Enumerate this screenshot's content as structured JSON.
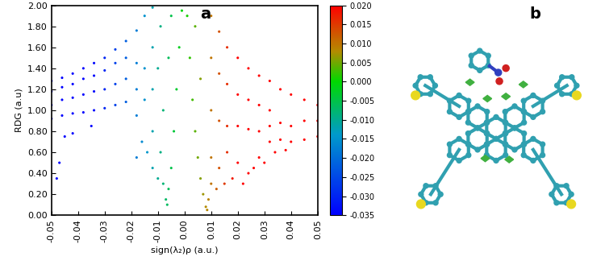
{
  "chart_data": {
    "type": "scatter",
    "panel_label": "a",
    "x_label": "sign(λ₂)ρ (a.u.)",
    "y_label": "RDG (a.u)",
    "x": [
      -0.05,
      -0.05,
      -0.05,
      -0.05,
      -0.046,
      -0.046,
      -0.046,
      -0.046,
      -0.042,
      -0.042,
      -0.042,
      -0.042,
      -0.038,
      -0.038,
      -0.038,
      -0.038,
      -0.034,
      -0.034,
      -0.034,
      -0.034,
      -0.03,
      -0.03,
      -0.03,
      -0.03,
      -0.026,
      -0.026,
      -0.026,
      -0.026,
      -0.022,
      -0.022,
      -0.022,
      -0.022,
      -0.018,
      -0.018,
      -0.018,
      -0.018,
      -0.015,
      -0.015,
      -0.015,
      -0.012,
      -0.012,
      -0.012,
      -0.012,
      -0.048,
      -0.047,
      -0.045,
      -0.042,
      -0.035,
      -0.018,
      -0.016,
      -0.014,
      -0.012,
      -0.01,
      -0.009,
      -0.008,
      -0.007,
      -0.0065,
      -0.006,
      -0.005,
      -0.004,
      -0.003,
      -0.002,
      -0.001,
      -0.008,
      -0.006,
      -0.005,
      -0.01,
      -0.009,
      0.001,
      0.002,
      0.003,
      0.004,
      0.005,
      0.006,
      0.007,
      0.008,
      0.0085,
      0.009,
      0.01,
      0.004,
      0.006,
      0.01,
      0.01,
      0.01,
      0.01,
      0.013,
      0.013,
      0.013,
      0.013,
      0.016,
      0.016,
      0.016,
      0.016,
      0.02,
      0.02,
      0.02,
      0.02,
      0.024,
      0.024,
      0.024,
      0.024,
      0.028,
      0.028,
      0.028,
      0.028,
      0.032,
      0.032,
      0.032,
      0.032,
      0.036,
      0.036,
      0.036,
      0.04,
      0.04,
      0.04,
      0.045,
      0.045,
      0.045,
      0.05,
      0.05,
      0.05,
      0.012,
      0.015,
      0.018,
      0.022,
      0.026,
      0.03,
      0.034,
      0.038
    ],
    "values": [
      0.92,
      1.05,
      1.18,
      1.28,
      0.95,
      1.1,
      1.22,
      1.31,
      0.97,
      1.12,
      1.25,
      1.35,
      0.98,
      1.15,
      1.3,
      1.4,
      1.0,
      1.18,
      1.33,
      1.45,
      1.02,
      1.2,
      1.38,
      1.5,
      1.05,
      1.25,
      1.45,
      1.58,
      1.08,
      1.3,
      1.5,
      1.66,
      0.95,
      1.2,
      1.45,
      1.76,
      1.1,
      1.4,
      1.9,
      0.8,
      1.2,
      1.6,
      1.98,
      0.35,
      0.5,
      0.75,
      0.78,
      0.85,
      0.55,
      0.7,
      0.6,
      0.45,
      0.35,
      0.6,
      0.3,
      0.15,
      0.1,
      0.25,
      0.45,
      0.8,
      1.2,
      1.6,
      1.95,
      1.0,
      1.5,
      1.9,
      1.4,
      1.8,
      1.9,
      1.5,
      1.1,
      0.8,
      0.55,
      0.35,
      0.2,
      0.08,
      0.05,
      0.15,
      0.3,
      1.8,
      1.3,
      0.55,
      1.0,
      1.5,
      1.9,
      0.45,
      0.9,
      1.35,
      1.75,
      0.6,
      0.85,
      1.25,
      1.6,
      0.5,
      0.85,
      1.15,
      1.5,
      0.4,
      0.82,
      1.1,
      1.4,
      0.55,
      0.8,
      1.05,
      1.33,
      0.7,
      0.85,
      1.0,
      1.28,
      0.72,
      0.88,
      1.2,
      0.7,
      0.85,
      1.15,
      0.72,
      0.9,
      1.1,
      0.75,
      0.9,
      1.05,
      0.25,
      0.3,
      0.35,
      0.3,
      0.45,
      0.5,
      0.6,
      0.62
    ],
    "xlim": [
      -0.05,
      0.05
    ],
    "xticks": [
      -0.05,
      -0.04,
      -0.03,
      -0.02,
      -0.01,
      {
        "value": 0.0,
        "label": "0.00"
      },
      0.01,
      0.02,
      0.03,
      0.04,
      0.05
    ],
    "ylim": [
      0.0,
      2.0
    ],
    "yticks": [
      {
        "value": 0.0,
        "label": "0.00"
      },
      {
        "value": 0.2,
        "label": "0.20"
      },
      {
        "value": 0.4,
        "label": "0.40"
      },
      {
        "value": 0.6,
        "label": "0.60"
      },
      {
        "value": 0.8,
        "label": "0.80"
      },
      {
        "value": 1.0,
        "label": "1.00"
      },
      {
        "value": 1.2,
        "label": "1.20"
      },
      {
        "value": 1.4,
        "label": "1.40"
      },
      {
        "value": 1.6,
        "label": "1.60"
      },
      {
        "value": 1.8,
        "label": "1.80"
      },
      {
        "value": 2.0,
        "label": "2.00"
      }
    ],
    "colorbar_lim": [
      -0.035,
      0.02
    ],
    "colorbar_ticks": [
      {
        "value": 0.02,
        "label": "0.020"
      },
      0.015,
      {
        "value": 0.01,
        "label": "0.010"
      },
      0.005,
      {
        "value": 0.0,
        "label": "0.000"
      },
      -0.005,
      {
        "value": -0.01,
        "label": "-0.010"
      },
      -0.015,
      {
        "value": -0.02,
        "label": "-0.020"
      },
      -0.025,
      {
        "value": -0.03,
        "label": "-0.030"
      },
      -0.035
    ],
    "grid": false
  },
  "panel_b": {
    "label": "b"
  }
}
